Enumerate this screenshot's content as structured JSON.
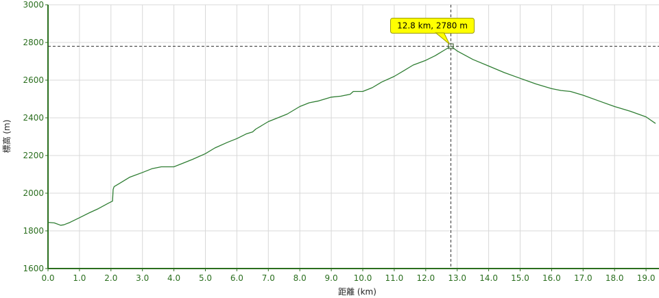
{
  "chart_data": {
    "type": "line",
    "xlabel": "距離 (km)",
    "ylabel": "標高 (m)",
    "xlim": [
      0,
      19.2
    ],
    "ylim": [
      1600,
      3000
    ],
    "x_ticks": [
      "0.0",
      "1.0",
      "2.0",
      "3.0",
      "4.0",
      "5.0",
      "6.0",
      "7.0",
      "8.0",
      "9.0",
      "10.0",
      "11.0",
      "12.0",
      "13.0",
      "14.0",
      "15.0",
      "16.0",
      "17.0",
      "18.0",
      "19.0"
    ],
    "y_ticks": [
      "1600",
      "1800",
      "2000",
      "2200",
      "2400",
      "2600",
      "2800",
      "3000"
    ],
    "grid": true,
    "series": [
      {
        "color": "#2e7d32",
        "x": [
          0.0,
          0.2,
          0.4,
          0.5,
          0.7,
          1.0,
          1.3,
          1.6,
          1.9,
          2.05,
          2.07,
          2.1,
          2.3,
          2.6,
          3.0,
          3.3,
          3.6,
          4.0,
          4.3,
          4.6,
          5.0,
          5.3,
          5.7,
          6.0,
          6.3,
          6.5,
          6.6,
          6.8,
          7.0,
          7.3,
          7.6,
          8.0,
          8.3,
          8.6,
          9.0,
          9.3,
          9.6,
          9.7,
          10.0,
          10.3,
          10.6,
          11.0,
          11.3,
          11.6,
          12.0,
          12.3,
          12.6,
          12.8,
          13.0,
          13.5,
          14.0,
          14.5,
          15.0,
          15.5,
          16.0,
          16.3,
          16.6,
          17.0,
          17.5,
          18.0,
          18.5,
          19.0,
          19.3
        ],
        "y": [
          1845,
          1842,
          1830,
          1832,
          1845,
          1870,
          1895,
          1918,
          1945,
          1958,
          2020,
          2035,
          2055,
          2085,
          2110,
          2130,
          2140,
          2140,
          2160,
          2180,
          2210,
          2240,
          2270,
          2290,
          2315,
          2325,
          2340,
          2360,
          2380,
          2400,
          2420,
          2460,
          2480,
          2490,
          2510,
          2515,
          2525,
          2540,
          2540,
          2560,
          2590,
          2620,
          2650,
          2680,
          2705,
          2730,
          2760,
          2780,
          2755,
          2710,
          2675,
          2640,
          2610,
          2580,
          2555,
          2545,
          2540,
          2520,
          2490,
          2460,
          2435,
          2405,
          2370
        ]
      }
    ],
    "annotation": {
      "label": "12.8 km, 2780 m",
      "x": 12.8,
      "y": 2780
    }
  }
}
